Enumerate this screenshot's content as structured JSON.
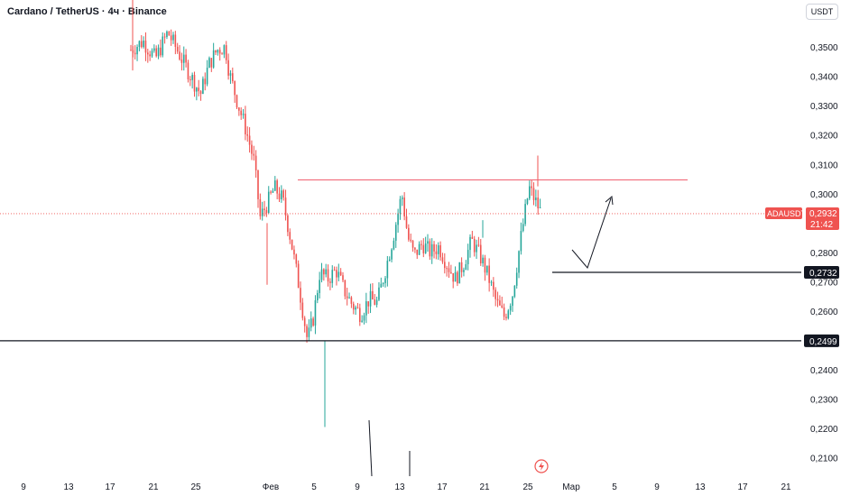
{
  "header": {
    "title": "Cardano / TetherUS · 4ч · Binance"
  },
  "currency_label": "USDT",
  "colors": {
    "up": "#26a69a",
    "down": "#ef5350",
    "line": "#131722",
    "resistance": "#f06070",
    "axis_text": "#131722",
    "grid": "#ffffff"
  },
  "chart_data": {
    "type": "candlestick",
    "symbol": "ADAUSDT",
    "ylim": [
      0.205,
      0.366
    ],
    "y_ticks": [
      "0,3500",
      "0,3400",
      "0,3300",
      "0,3200",
      "0,3100",
      "0,3000",
      "0,2900",
      "0,2800",
      "0,2700",
      "0,2600",
      "0,2500",
      "0,2400",
      "0,2300",
      "0,2200",
      "0,2100"
    ],
    "x_ticks": [
      "9",
      "13",
      "17",
      "21",
      "25",
      "Фев",
      "5",
      "9",
      "13",
      "17",
      "21",
      "25",
      "Мар",
      "5",
      "9",
      "13",
      "17",
      "21"
    ],
    "price_tag": {
      "symbol": "ADAUSDT",
      "price": "0,2932",
      "countdown": "21:42"
    },
    "levels": [
      {
        "label": "0,2732",
        "price": 0.2732,
        "style": "support-short"
      },
      {
        "label": "0,2499",
        "price": 0.2499,
        "style": "full"
      }
    ],
    "resistance": 0.3047,
    "close_points": [
      [
        0.0,
        0.349
      ],
      [
        0.03,
        0.352
      ],
      [
        0.06,
        0.346
      ],
      [
        0.09,
        0.355
      ],
      [
        0.12,
        0.347
      ],
      [
        0.15,
        0.339
      ],
      [
        0.17,
        0.334
      ],
      [
        0.19,
        0.344
      ],
      [
        0.21,
        0.349
      ],
      [
        0.23,
        0.35
      ],
      [
        0.24,
        0.341
      ],
      [
        0.26,
        0.331
      ],
      [
        0.28,
        0.322
      ],
      [
        0.3,
        0.311
      ],
      [
        0.315,
        0.292
      ],
      [
        0.33,
        0.296
      ],
      [
        0.35,
        0.302
      ],
      [
        0.37,
        0.298
      ],
      [
        0.39,
        0.284
      ],
      [
        0.41,
        0.268
      ],
      [
        0.43,
        0.25
      ],
      [
        0.445,
        0.258
      ],
      [
        0.46,
        0.273
      ],
      [
        0.48,
        0.271
      ],
      [
        0.5,
        0.274
      ],
      [
        0.52,
        0.267
      ],
      [
        0.54,
        0.262
      ],
      [
        0.56,
        0.259
      ],
      [
        0.58,
        0.264
      ],
      [
        0.6,
        0.263
      ],
      [
        0.62,
        0.274
      ],
      [
        0.64,
        0.286
      ],
      [
        0.66,
        0.3
      ],
      [
        0.675,
        0.285
      ],
      [
        0.69,
        0.279
      ],
      [
        0.71,
        0.283
      ],
      [
        0.73,
        0.28
      ],
      [
        0.75,
        0.282
      ],
      [
        0.77,
        0.276
      ],
      [
        0.79,
        0.271
      ],
      [
        0.81,
        0.276
      ],
      [
        0.83,
        0.284
      ],
      [
        0.85,
        0.279
      ],
      [
        0.87,
        0.272
      ],
      [
        0.89,
        0.263
      ],
      [
        0.91,
        0.258
      ],
      [
        0.93,
        0.266
      ],
      [
        0.95,
        0.285
      ],
      [
        0.97,
        0.302
      ],
      [
        1.0,
        0.2932
      ]
    ]
  },
  "annotations": {
    "alert_icon": "lightning-icon"
  }
}
